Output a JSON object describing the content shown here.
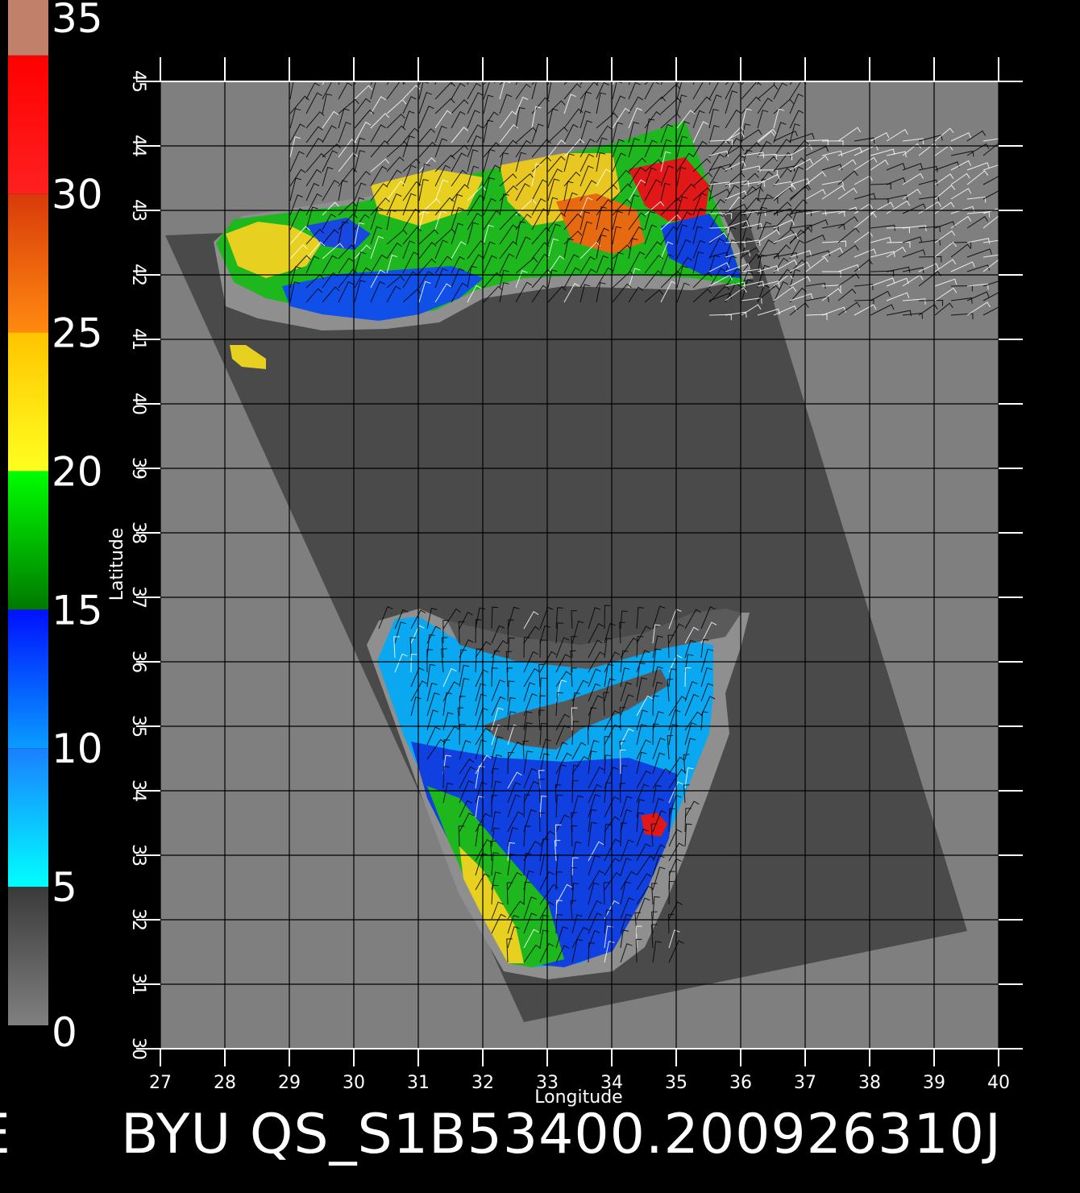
{
  "colorbar": {
    "labels": [
      "35",
      "30",
      "25",
      "20",
      "15",
      "10",
      "5",
      "0"
    ],
    "segments": [
      {
        "from": 0,
        "to": 5,
        "top": "#3a3a3a",
        "bottom": "#808080"
      },
      {
        "from": 5,
        "to": 10,
        "top": "#1a7fff",
        "bottom": "#00ffff"
      },
      {
        "from": 10,
        "to": 15,
        "top": "#0010ff",
        "bottom": "#0a9cff"
      },
      {
        "from": 15,
        "to": 20,
        "top": "#00ff00",
        "bottom": "#007800"
      },
      {
        "from": 20,
        "to": 25,
        "top": "#ffc400",
        "bottom": "#ffff20"
      },
      {
        "from": 25,
        "to": 30,
        "top": "#d83a0a",
        "bottom": "#ff8a10"
      },
      {
        "from": 30,
        "to": 35,
        "top": "#ff0000",
        "bottom": "#ff2020"
      },
      {
        "from": 35,
        "to": 37,
        "top": "#c0806a",
        "bottom": "#c0806a"
      }
    ]
  },
  "map": {
    "xlabel": "Longitude",
    "ylabel": "Latitude",
    "x_ticks": [
      "27",
      "28",
      "29",
      "30",
      "31",
      "32",
      "33",
      "34",
      "35",
      "36",
      "37",
      "38",
      "39",
      "40"
    ],
    "y_ticks": [
      "30",
      "31",
      "32",
      "33",
      "34",
      "35",
      "36",
      "37",
      "38",
      "39",
      "40",
      "41",
      "42",
      "43",
      "44",
      "45"
    ],
    "xlim": [
      27,
      40
    ],
    "ylim": [
      30,
      45
    ],
    "land_color": "#7f7f7f",
    "swath_color": "#4a4a4a",
    "coast_color": "#8f8f8f"
  },
  "caption": {
    "left_fragment": "E",
    "text": "BYU  QS_S1B53400.200926310J"
  }
}
